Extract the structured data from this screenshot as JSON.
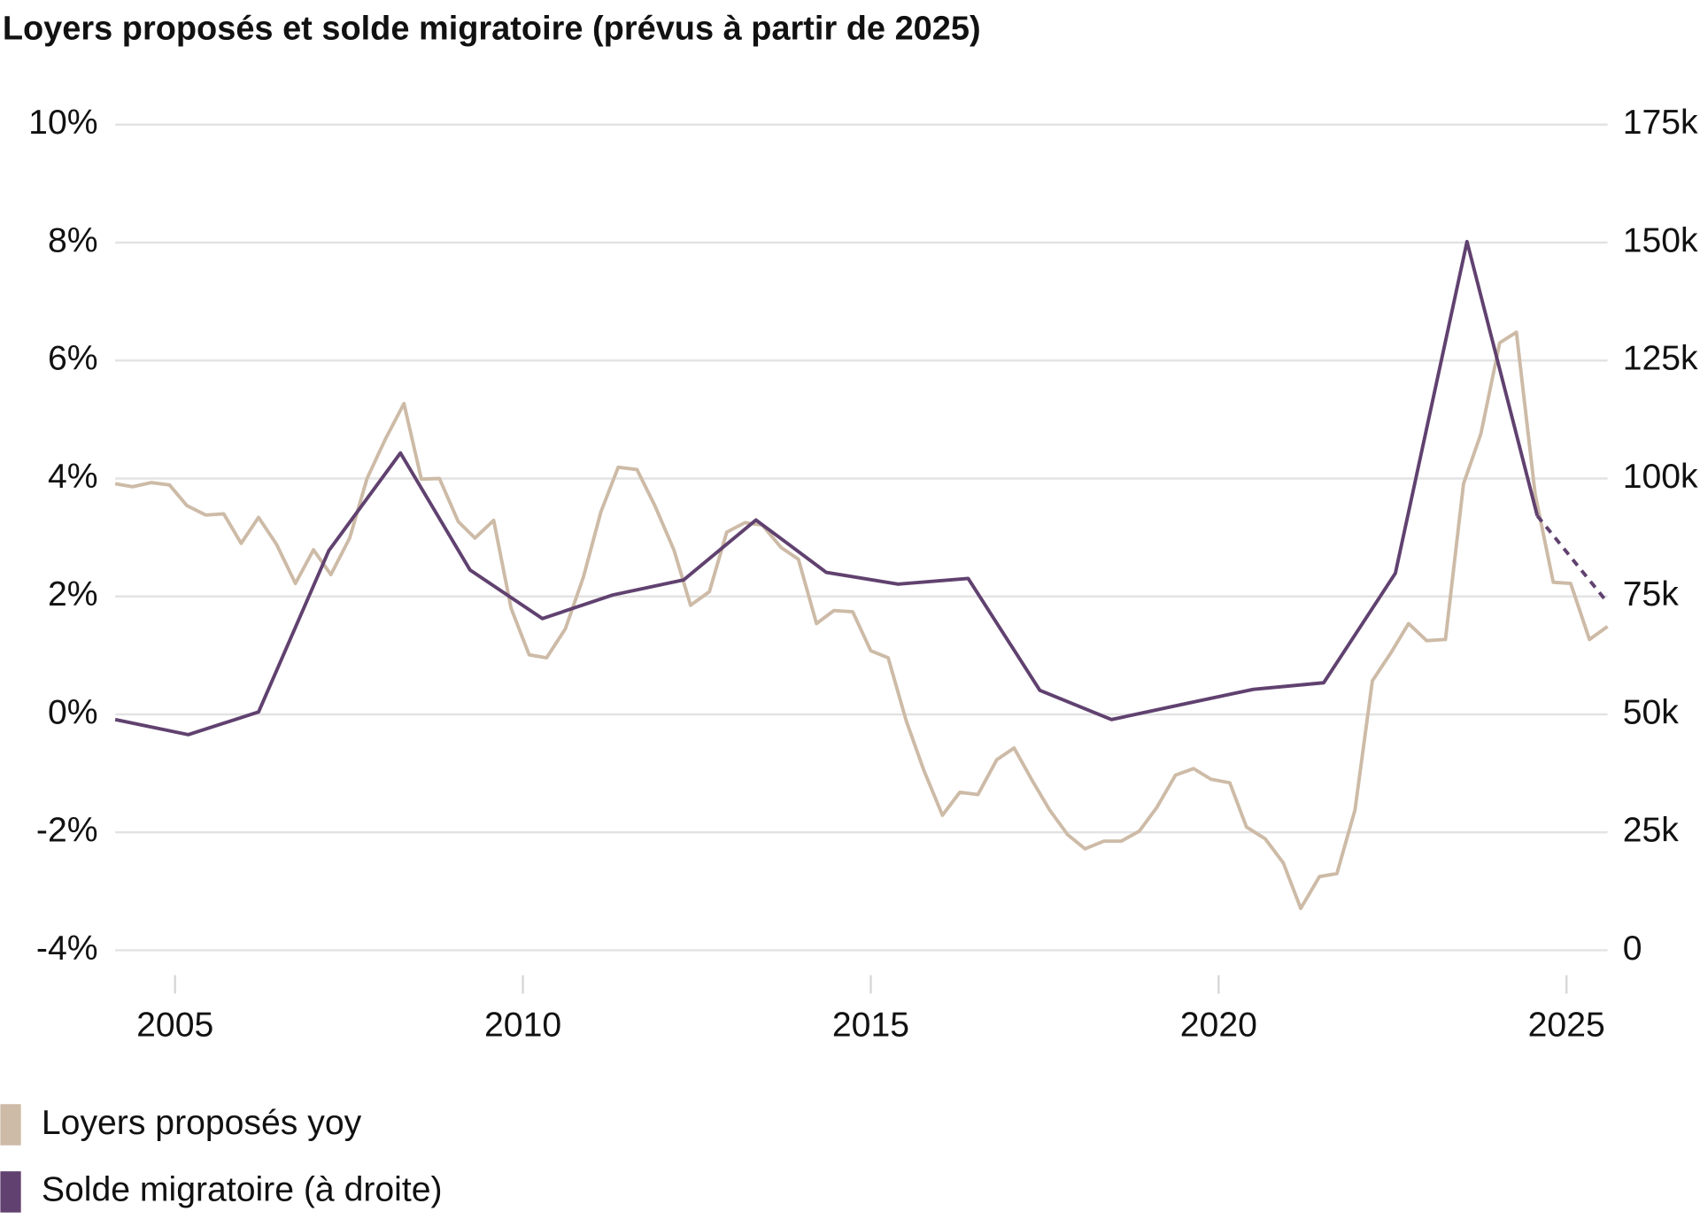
{
  "chart_data": {
    "type": "line",
    "title": "Loyers proposés et solde migratoire (prévus à partir de 2025)",
    "xlim": [
      2004.14,
      2025.59
    ],
    "xticks": [
      2005,
      2010,
      2015,
      2020,
      2025
    ],
    "ylim": [
      -4,
      10
    ],
    "yticks": [
      {
        "value": -4,
        "label": "-4%"
      },
      {
        "value": -2,
        "label": "-2%"
      },
      {
        "value": 0,
        "label": "0%"
      },
      {
        "value": 2,
        "label": "2%"
      },
      {
        "value": 4,
        "label": "4%"
      },
      {
        "value": 6,
        "label": "6%"
      },
      {
        "value": 8,
        "label": "8%"
      },
      {
        "value": 10,
        "label": "10%"
      }
    ],
    "y2lim": [
      0,
      175
    ],
    "y2ticks": [
      0,
      {
        "value": 25,
        "label": "25k"
      },
      {
        "value": 50,
        "label": "50k"
      },
      {
        "value": 75,
        "label": "75k"
      },
      {
        "value": 100,
        "label": "100k"
      },
      {
        "value": 125,
        "label": "125k"
      },
      {
        "value": 150,
        "label": "150k"
      },
      {
        "value": 175,
        "label": "175k"
      }
    ],
    "grid": true,
    "legend": "bottom-left",
    "series": [
      {
        "name": "Loyers proposés yoy",
        "color": "#cdbba7",
        "x": [
          2004.14,
          2004.39,
          2004.66,
          2004.92,
          2005.17,
          2005.44,
          2005.7,
          2005.95,
          2006.2,
          2006.46,
          2006.73,
          2006.99,
          2007.24,
          2007.51,
          2007.76,
          2008.02,
          2008.29,
          2008.54,
          2008.8,
          2009.07,
          2009.31,
          2009.58,
          2009.83,
          2010.09,
          2010.34,
          2010.61,
          2010.87,
          2011.12,
          2011.37,
          2011.64,
          2011.9,
          2012.17,
          2012.41,
          2012.68,
          2012.93,
          2013.19,
          2013.44,
          2013.71,
          2013.96,
          2014.22,
          2014.47,
          2014.74,
          2015.0,
          2015.25,
          2015.51,
          2015.76,
          2016.03,
          2016.28,
          2016.54,
          2016.81,
          2017.06,
          2017.32,
          2017.57,
          2017.83,
          2018.08,
          2018.35,
          2018.6,
          2018.86,
          2019.11,
          2019.38,
          2019.64,
          2019.89,
          2020.16,
          2020.4,
          2020.67,
          2020.93,
          2021.18,
          2021.45,
          2021.7,
          2021.96,
          2022.21,
          2022.48,
          2022.73,
          2022.99,
          2023.26,
          2023.52,
          2023.77,
          2024.04,
          2024.28,
          2024.55,
          2024.81,
          2025.06,
          2025.33,
          2025.59
        ],
        "values": [
          3.91,
          3.86,
          3.93,
          3.89,
          3.54,
          3.38,
          3.4,
          2.9,
          3.34,
          2.88,
          2.22,
          2.79,
          2.37,
          2.99,
          4.0,
          4.66,
          5.27,
          3.99,
          4.0,
          3.27,
          2.99,
          3.29,
          1.8,
          1.01,
          0.96,
          1.45,
          2.33,
          3.43,
          4.19,
          4.15,
          3.53,
          2.79,
          1.85,
          2.08,
          3.09,
          3.25,
          3.21,
          2.83,
          2.63,
          1.54,
          1.76,
          1.74,
          1.08,
          0.96,
          -0.11,
          -0.94,
          -1.71,
          -1.32,
          -1.36,
          -0.77,
          -0.57,
          -1.12,
          -1.62,
          -2.04,
          -2.28,
          -2.15,
          -2.15,
          -1.98,
          -1.58,
          -1.03,
          -0.92,
          -1.1,
          -1.16,
          -1.91,
          -2.11,
          -2.52,
          -3.29,
          -2.75,
          -2.7,
          -1.62,
          0.57,
          1.05,
          1.54,
          1.25,
          1.27,
          3.91,
          4.76,
          6.3,
          6.48,
          3.73,
          2.24,
          2.22,
          1.27,
          1.49
        ]
      },
      {
        "name": "Solde migratoire (à droite)",
        "color": "#60416f",
        "axis": "y2",
        "dash_from_index": 20,
        "x": [
          2004.14,
          2005.19,
          2006.2,
          2007.21,
          2008.24,
          2009.24,
          2010.28,
          2011.29,
          2012.31,
          2013.35,
          2014.36,
          2015.39,
          2016.4,
          2017.43,
          2018.46,
          2019.47,
          2020.5,
          2021.51,
          2022.54,
          2023.57,
          2024.58,
          2025.59
        ],
        "values": [
          48.9,
          45.7,
          50.5,
          84.7,
          105.4,
          80.6,
          70.3,
          75.3,
          78.5,
          91.2,
          80.1,
          77.6,
          78.8,
          55.1,
          48.9,
          52.1,
          55.3,
          56.7,
          79.9,
          150.2,
          92.1,
          73.7
        ]
      }
    ]
  }
}
